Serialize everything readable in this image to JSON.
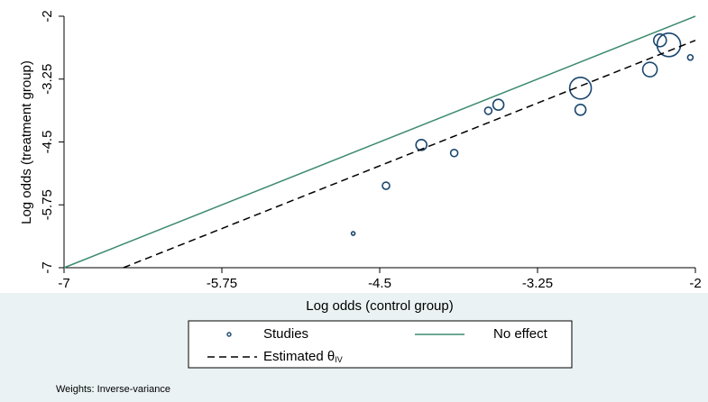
{
  "chart_data": {
    "type": "scatter",
    "xlabel": "Log odds (control group)",
    "ylabel": "Log odds (treatment group)",
    "note": "Weights: Inverse-variance",
    "xlim": [
      -7,
      -2
    ],
    "ylim": [
      -7,
      -2
    ],
    "xticks": [
      -7,
      -5.75,
      -4.5,
      -3.25,
      -2
    ],
    "yticks": [
      -7,
      -5.75,
      -4.5,
      -3.25,
      -2
    ],
    "series": [
      {
        "name": "Studies",
        "type": "scatter",
        "color": "#1a476f",
        "x": [
          -4.71,
          -4.45,
          -4.17,
          -3.91,
          -3.64,
          -3.56,
          -2.91,
          -2.91,
          -2.36,
          -2.28,
          -2.21,
          -2.04
        ],
        "values": [
          -6.32,
          -5.37,
          -4.56,
          -4.72,
          -3.88,
          -3.76,
          -3.43,
          -3.86,
          -3.06,
          -2.48,
          -2.57,
          -2.82
        ],
        "weights": [
          4,
          16,
          36,
          16,
          16,
          36,
          144,
          36,
          64,
          49,
          169,
          9
        ]
      },
      {
        "name": "No effect",
        "type": "line",
        "color": "#3d8b6e",
        "dash": false,
        "x": [
          -7,
          -2
        ],
        "values": [
          -7,
          -2
        ]
      },
      {
        "name": "Estimated θIV",
        "type": "line",
        "color": "#000000",
        "dash": true,
        "x": [
          -6.53,
          -2
        ],
        "values": [
          -7,
          -2.48
        ]
      }
    ]
  }
}
